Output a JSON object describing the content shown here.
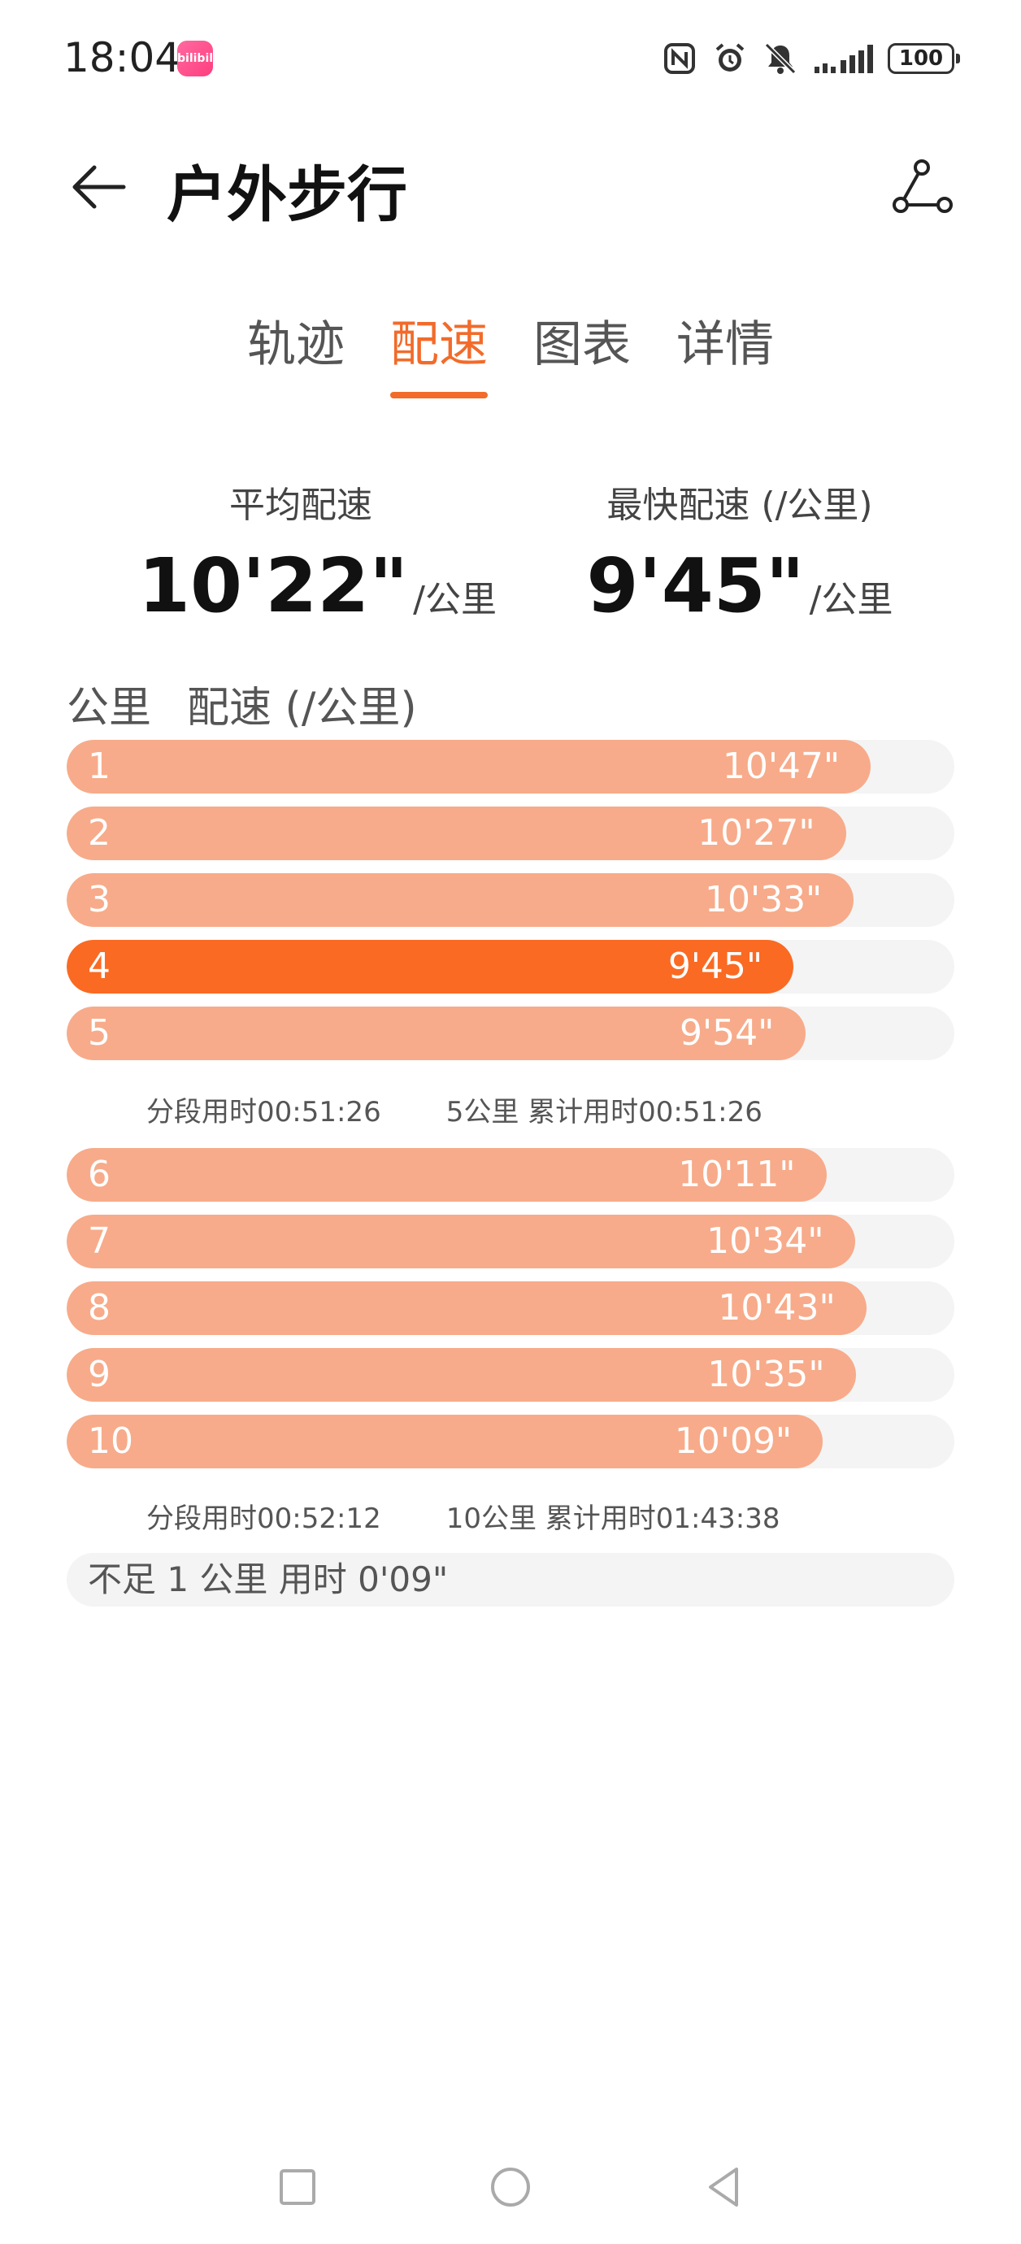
{
  "status_bar": {
    "time": "18:04",
    "app_badge": "bilibili",
    "battery": "100",
    "icons": [
      "nfc-icon",
      "alarm-icon",
      "mute-icon",
      "signal-icon"
    ]
  },
  "header": {
    "title": "户外步行"
  },
  "tabs": [
    {
      "label": "轨迹",
      "active": false
    },
    {
      "label": "配速",
      "active": true
    },
    {
      "label": "图表",
      "active": false
    },
    {
      "label": "详情",
      "active": false
    }
  ],
  "summary": {
    "avg": {
      "label": "平均配速",
      "value": "10'22\"",
      "unit": "/公里"
    },
    "fastest": {
      "label": "最快配速 (/公里)",
      "value": "9'45\"",
      "unit": "/公里"
    }
  },
  "table_header": {
    "km": "公里",
    "pace": "配速 (/公里)"
  },
  "group1": [
    {
      "km": "1",
      "pace": "10'47\"",
      "fill": 0.906
    },
    {
      "km": "2",
      "pace": "10'27\"",
      "fill": 0.878
    },
    {
      "km": "3",
      "pace": "10'33\"",
      "fill": 0.886
    },
    {
      "km": "4",
      "pace": "9'45\"",
      "fill": 0.819,
      "fastest": true
    },
    {
      "km": "5",
      "pace": "9'54\"",
      "fill": 0.832
    }
  ],
  "segment1": {
    "split": "分段用时00:51:26",
    "cumulative": "5公里 累计用时00:51:26"
  },
  "group2": [
    {
      "km": "6",
      "pace": "10'11\"",
      "fill": 0.856
    },
    {
      "km": "7",
      "pace": "10'34\"",
      "fill": 0.888
    },
    {
      "km": "8",
      "pace": "10'43\"",
      "fill": 0.901
    },
    {
      "km": "9",
      "pace": "10'35\"",
      "fill": 0.889
    },
    {
      "km": "10",
      "pace": "10'09\"",
      "fill": 0.852
    }
  ],
  "segment2": {
    "split": "分段用时00:52:12",
    "cumulative": "10公里 累计用时01:43:38"
  },
  "remainder": "不足 1 公里 用时 0'09\"",
  "colors": {
    "accent": "#f26b2a",
    "bar": "#f7ab8a",
    "bar_fastest": "#fa6a23",
    "track": "#f4f4f4"
  }
}
